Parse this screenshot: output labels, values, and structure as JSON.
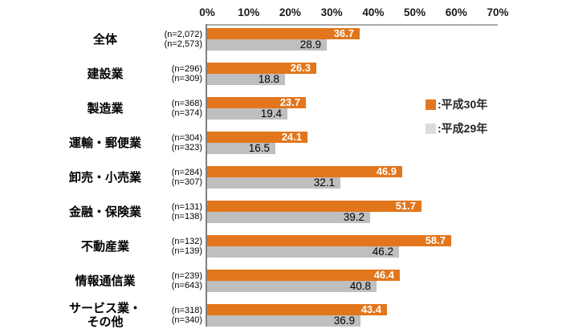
{
  "chart_data": {
    "type": "bar",
    "orientation": "horizontal",
    "title": "",
    "x_axis": {
      "ticks": [
        "0%",
        "10%",
        "20%",
        "30%",
        "40%",
        "50%",
        "60%",
        "70%"
      ],
      "min": 0,
      "max": 70,
      "grid": "off"
    },
    "legend": {
      "position": "right",
      "items": [
        {
          "label": ":平成30年",
          "color": "#e2761c"
        },
        {
          "label": ":平成29年",
          "color": "#dcdcdc"
        }
      ]
    },
    "colors": {
      "h30_bar": "#e2761c",
      "h29_bar": "#bfbfbf",
      "h30_value_text": "#ffffff",
      "h29_value_text": "#000000",
      "axis_line_top": "#aaaaaa",
      "axis_line_left": "#7f7f7f"
    },
    "series_names": [
      "平成30年",
      "平成29年"
    ],
    "rows": [
      {
        "category_lines": [
          "全体"
        ],
        "n_labels": [
          "(n=2,072)",
          "(n=2,573)"
        ],
        "h30": 36.7,
        "h29": 28.9
      },
      {
        "category_lines": [
          "建設業"
        ],
        "n_labels": [
          "(n=296)",
          "(n=309)"
        ],
        "h30": 26.3,
        "h29": 18.8
      },
      {
        "category_lines": [
          "製造業"
        ],
        "n_labels": [
          "(n=368)",
          "(n=374)"
        ],
        "h30": 23.7,
        "h29": 19.4
      },
      {
        "category_lines": [
          "運輸・郵便業"
        ],
        "n_labels": [
          "(n=304)",
          "(n=323)"
        ],
        "h30": 24.1,
        "h29": 16.5
      },
      {
        "category_lines": [
          "卸売・小売業"
        ],
        "n_labels": [
          "(n=284)",
          "(n=307)"
        ],
        "h30": 46.9,
        "h29": 32.1
      },
      {
        "category_lines": [
          "金融・保険業"
        ],
        "n_labels": [
          "(n=131)",
          "(n=138)"
        ],
        "h30": 51.7,
        "h29": 39.2
      },
      {
        "category_lines": [
          "不動産業"
        ],
        "n_labels": [
          "(n=132)",
          "(n=139)"
        ],
        "h30": 58.7,
        "h29": 46.2
      },
      {
        "category_lines": [
          "情報通信業"
        ],
        "n_labels": [
          "(n=239)",
          "(n=643)"
        ],
        "h30": 46.4,
        "h29": 40.8
      },
      {
        "category_lines": [
          "サービス業・",
          "その他"
        ],
        "n_labels": [
          "(n=318)",
          "(n=340)"
        ],
        "h30": 43.4,
        "h29": 36.9
      }
    ]
  }
}
